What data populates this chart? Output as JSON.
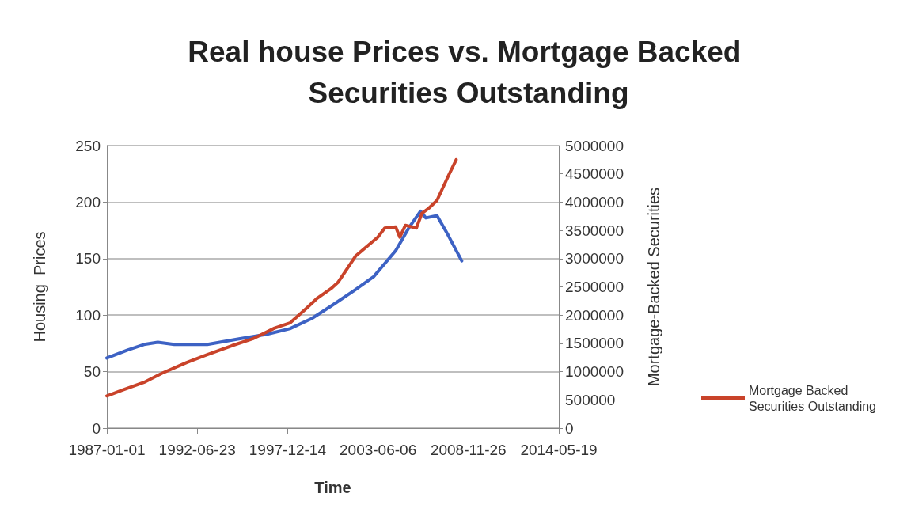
{
  "chart_data": {
    "type": "line",
    "title": "Real house Prices vs. Mortgage Backed Securities Outstanding",
    "xlabel": "Time",
    "ylabel": "Housing  Prices",
    "y2label": "Mortgage-Backed Securities",
    "xlim": [
      "1987-01-01",
      "2014-05-19"
    ],
    "xticks": [
      "1987-01-01",
      "1992-06-23",
      "1997-12-14",
      "2003-06-06",
      "2008-11-26",
      "2014-05-19"
    ],
    "ylim": [
      0,
      250
    ],
    "yticks": [
      0,
      50,
      100,
      150,
      200,
      250
    ],
    "y2lim": [
      0,
      5000000
    ],
    "y2ticks": [
      0,
      500000,
      1000000,
      1500000,
      2000000,
      2500000,
      3000000,
      3500000,
      4000000,
      4500000,
      5000000
    ],
    "grid": "y",
    "legend": "right",
    "marker": "none",
    "line_style": "solid",
    "series": [
      {
        "color": "#3d62c4",
        "x": [
          "1987-01",
          "1988-04",
          "1989-04",
          "1990-02",
          "1991-02",
          "1993-02",
          "1995-01",
          "1996-09",
          "1998-02",
          "1999-06",
          "2000-08",
          "2002-01",
          "2003-03",
          "2004-07",
          "2005-05",
          "2006-01",
          "2006-05",
          "2007-01",
          "2007-09",
          "2008-07"
        ],
        "values": [
          62,
          69,
          74,
          76,
          74,
          74,
          79,
          83,
          88,
          97,
          108,
          122,
          134,
          157,
          178,
          192,
          186,
          188,
          171,
          148
        ]
      },
      {
        "name": "Mortgage Backed Securities Outstanding",
        "color": "#c9432a",
        "axis": "y2",
        "x": [
          "1987-01",
          "1987-12",
          "1989-04",
          "1990-05",
          "1991-11",
          "1993-02",
          "1994-08",
          "1995-11",
          "1997-03",
          "1998-02",
          "1999-02",
          "1999-10",
          "2000-08",
          "2001-01",
          "2002-02",
          "2003-06",
          "2003-11",
          "2004-07",
          "2004-10",
          "2005-02",
          "2005-10",
          "2006-02",
          "2006-07",
          "2007-01",
          "2007-09",
          "2008-03"
        ],
        "values": [
          570000,
          670000,
          810000,
          970000,
          1160000,
          1300000,
          1460000,
          1580000,
          1770000,
          1860000,
          2120000,
          2300000,
          2470000,
          2580000,
          3050000,
          3380000,
          3540000,
          3560000,
          3380000,
          3590000,
          3540000,
          3800000,
          3890000,
          4030000,
          4450000,
          4750000
        ]
      }
    ]
  }
}
